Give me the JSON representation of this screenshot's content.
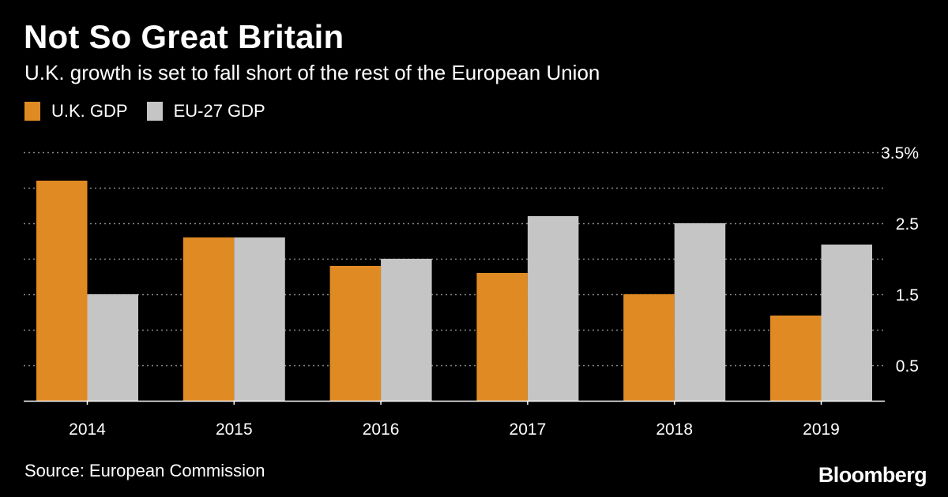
{
  "header": {
    "title": "Not So Great Britain",
    "subtitle": "U.K. growth is set to fall short of the rest of the European Union"
  },
  "legend": {
    "items": [
      {
        "label": "U.K. GDP",
        "color": "#e08a24"
      },
      {
        "label": "EU-27 GDP",
        "color": "#c5c5c5"
      }
    ]
  },
  "chart_data": {
    "type": "bar",
    "title": "Not So Great Britain",
    "subtitle": "U.K. growth is set to fall short of the rest of the European Union",
    "xlabel": "",
    "ylabel": "",
    "categories": [
      "2014",
      "2015",
      "2016",
      "2017",
      "2018",
      "2019"
    ],
    "series": [
      {
        "name": "U.K. GDP",
        "color": "#e08a24",
        "values": [
          3.1,
          2.3,
          1.9,
          1.8,
          1.5,
          1.2
        ]
      },
      {
        "name": "EU-27 GDP",
        "color": "#c5c5c5",
        "values": [
          1.5,
          2.3,
          2.0,
          2.6,
          2.5,
          2.2
        ]
      }
    ],
    "ylim": [
      0,
      3.5
    ],
    "yticks": [
      {
        "value": 0.5,
        "label": "0.5"
      },
      {
        "value": 1.5,
        "label": "1.5"
      },
      {
        "value": 2.5,
        "label": "2.5"
      },
      {
        "value": 3.5,
        "label": "3.5%"
      }
    ],
    "grid_values": [
      0.5,
      1.0,
      1.5,
      2.0,
      2.5,
      3.0,
      3.5
    ],
    "grid": true,
    "legend_position": "top-left"
  },
  "footer": {
    "source": "Source: European Commission",
    "brand": "Bloomberg"
  }
}
